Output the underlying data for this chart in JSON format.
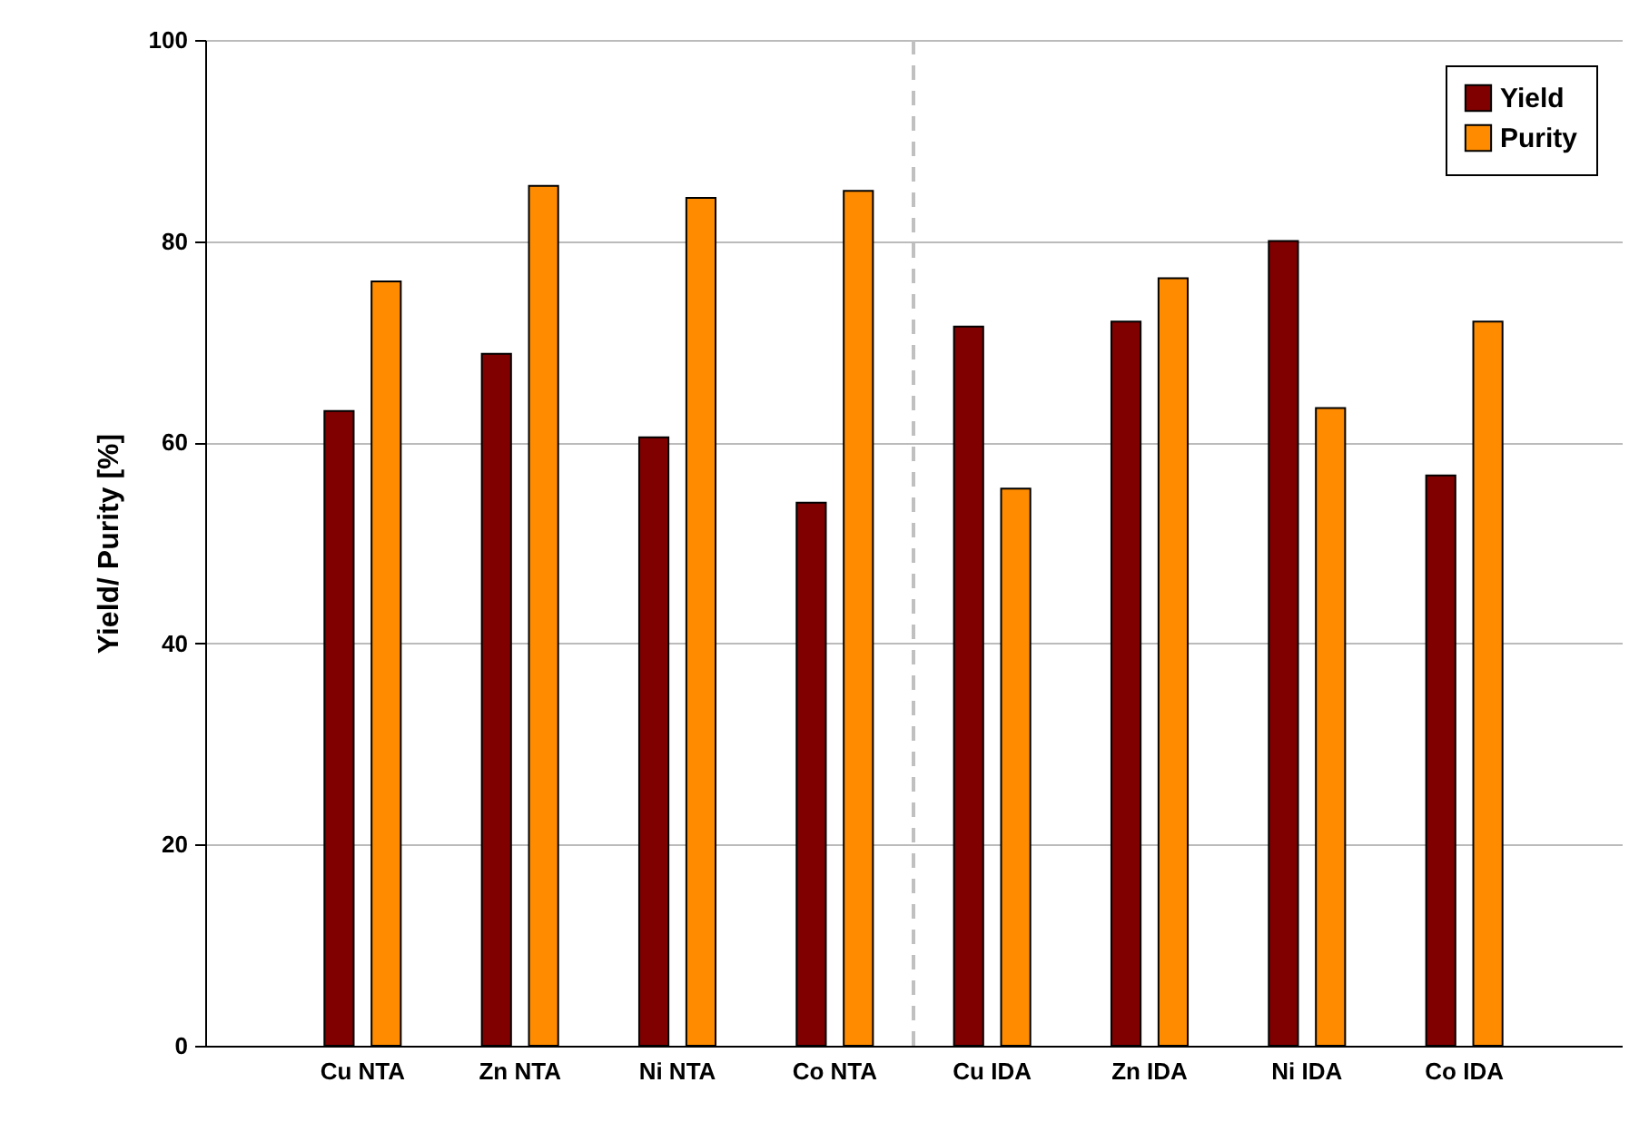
{
  "chart_data": {
    "type": "bar",
    "ylabel": "Yield/ Purity [%]",
    "categories": [
      "Cu NTA",
      "Zn NTA",
      "Ni NTA",
      "Co NTA",
      "Cu IDA",
      "Zn IDA",
      "Ni IDA",
      "Co IDA"
    ],
    "series": [
      {
        "name": "Yield",
        "color": "#800000",
        "values": [
          63.1,
          68.8,
          60.5,
          54.0,
          71.5,
          72.0,
          80.0,
          56.7
        ]
      },
      {
        "name": "Purity",
        "color": "#ff8c00",
        "values": [
          76.0,
          85.5,
          84.3,
          85.0,
          55.4,
          76.3,
          63.4,
          72.0
        ]
      }
    ],
    "ylim": [
      0,
      100
    ],
    "yticks": [
      0,
      20,
      40,
      60,
      80,
      100
    ],
    "grid": "y",
    "legend": "top right",
    "ref_lines": [
      {
        "axis": "x",
        "value": "Cu IDA",
        "color": "#c0c0c0",
        "line_style": "dashed"
      }
    ]
  }
}
